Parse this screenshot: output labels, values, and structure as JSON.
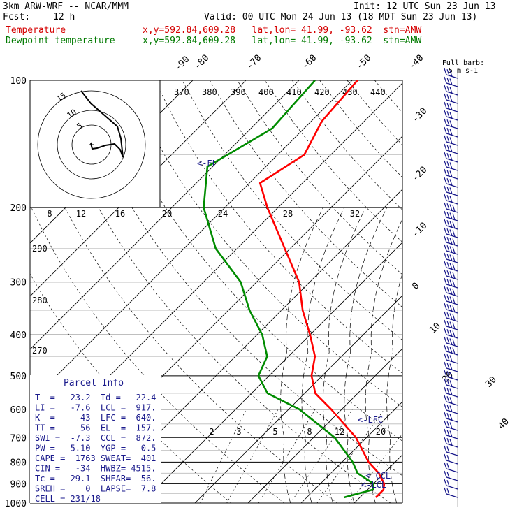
{
  "header": {
    "title": "3km ARW-WRF -- NCAR/MMM",
    "init": "Init: 12 UTC Sun 23 Jun 13",
    "fcst_label": "Fcst:",
    "fcst_value": "12 h",
    "valid": "Valid: 00 UTC Mon 24 Jun 13 (18 MDT Sun 23 Jun 13)",
    "temp_label": "Temperature",
    "temp_info": "x,y=592.84,609.28   lat,lon= 41.99, -93.62  stn=AMW",
    "dew_label": "Dewpoint temperature",
    "dew_info": "x,y=592.84,609.28   lat,lon= 41.99, -93.62  stn=AMW"
  },
  "colors": {
    "temperature": "#ff0000",
    "dewpoint": "#008c00",
    "text_blue": "#1a1a8c",
    "wind": "#1a1a8c"
  },
  "chart_data": {
    "type": "line",
    "subtype": "skew-T log-P sounding",
    "y_axis": {
      "label_values": [
        "100",
        "200",
        "300",
        "400",
        "500",
        "600",
        "700",
        "800",
        "900",
        "1000"
      ],
      "scale": "log pressure (hPa)"
    },
    "isotherm_labels": [
      "-90",
      "-80",
      "-70",
      "-60",
      "-50",
      "-40",
      "-30",
      "-20",
      "-10",
      "0",
      "10",
      "20",
      "30",
      "40"
    ],
    "theta_labels": [
      "370",
      "380",
      "390",
      "400",
      "410",
      "420",
      "430",
      "440",
      "290",
      "280",
      "270"
    ],
    "mixing_ratio_labels": [
      "2",
      "3",
      "5",
      "8",
      "12",
      "20"
    ],
    "wind_scale": {
      "label": "kts",
      "ticks": [
        "8",
        "12",
        "16",
        "20",
        "24",
        "28",
        "32"
      ]
    },
    "hodograph_rings": [
      "5",
      "10",
      "15"
    ],
    "series": [
      {
        "name": "Temperature",
        "points": [
          [
            100,
            -59
          ],
          [
            125,
            -58
          ],
          [
            150,
            -55
          ],
          [
            175,
            -58
          ],
          [
            200,
            -52
          ],
          [
            250,
            -41
          ],
          [
            300,
            -32
          ],
          [
            350,
            -26
          ],
          [
            400,
            -20
          ],
          [
            450,
            -15
          ],
          [
            500,
            -12
          ],
          [
            550,
            -8
          ],
          [
            600,
            -2
          ],
          [
            700,
            8
          ],
          [
            800,
            15
          ],
          [
            850,
            19
          ],
          [
            900,
            22
          ],
          [
            930,
            23
          ],
          [
            970,
            23
          ]
        ]
      },
      {
        "name": "Dewpoint temperature",
        "points": [
          [
            100,
            -67
          ],
          [
            130,
            -66
          ],
          [
            160,
            -71
          ],
          [
            200,
            -64
          ],
          [
            250,
            -54
          ],
          [
            300,
            -43
          ],
          [
            350,
            -36
          ],
          [
            400,
            -29
          ],
          [
            450,
            -24
          ],
          [
            500,
            -22
          ],
          [
            550,
            -17
          ],
          [
            600,
            -8
          ],
          [
            700,
            4
          ],
          [
            800,
            12
          ],
          [
            850,
            15
          ],
          [
            900,
            20
          ],
          [
            930,
            21
          ],
          [
            970,
            17
          ]
        ]
      }
    ],
    "annotations": [
      "<-EL",
      "<-LFC",
      "<-CCL",
      "<-LCL"
    ],
    "wind_barb_label": "Full barb:\n5 m s-1"
  },
  "parcel_info": {
    "title": "Parcel Info",
    "rows": [
      "T  =   23.2  Td =   22.4",
      "LI =   -7.6  LCL =  917.",
      "K  =     43  LFC =  640.",
      "TT =     56  EL  =  157.",
      "SWI =  -7.3  CCL =  872.",
      "PW =   5.10  YGP =   0.5",
      "CAPE =  1763 SWEAT=  401",
      "CIN =   -34  HWBZ= 4515.",
      "Tc =   29.1  SHEAR=  56.",
      "SREH =    0  LAPSE=  7.8",
      "CELL = 231/18"
    ]
  }
}
